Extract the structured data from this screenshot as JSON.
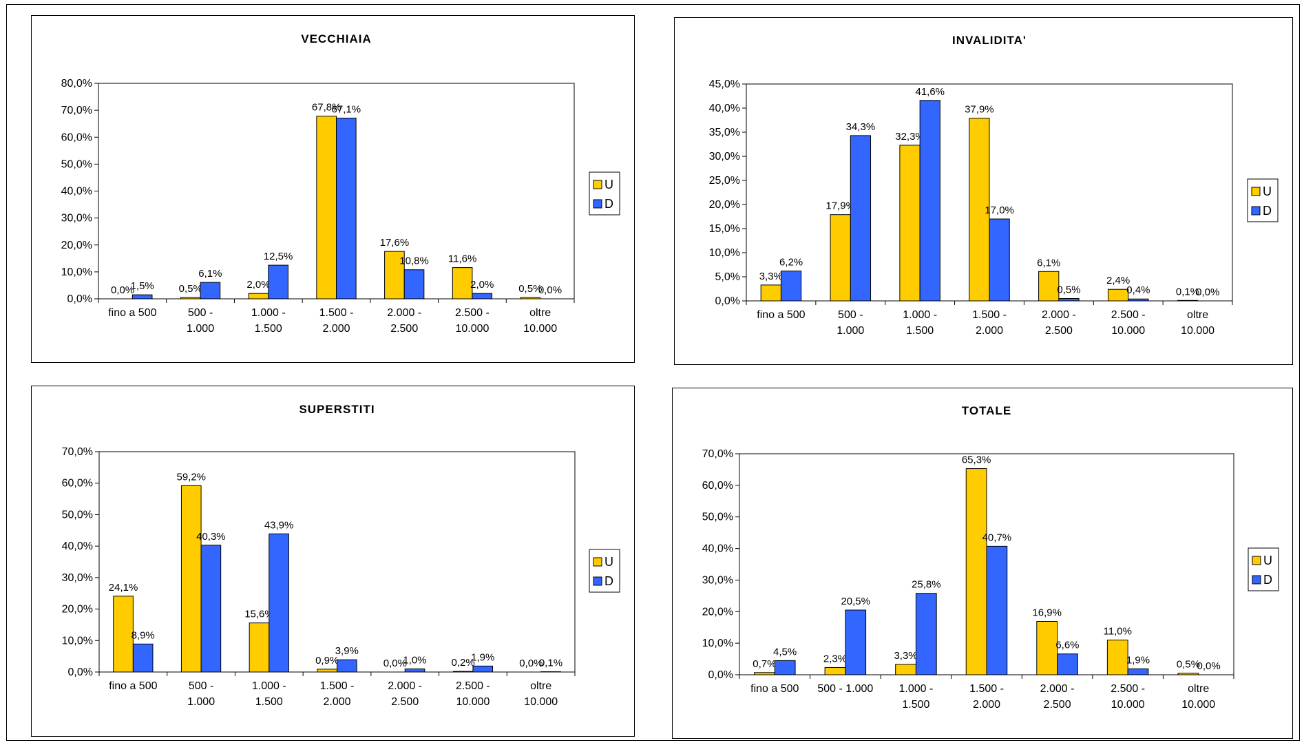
{
  "colors": {
    "U": "#ffcc00",
    "D": "#3366ff"
  },
  "chart_data": [
    {
      "type": "bar",
      "title": "VECCHIAIA",
      "categories": [
        [
          "fino a 500"
        ],
        [
          "500 -",
          "1.000"
        ],
        [
          "1.000 -",
          "1.500"
        ],
        [
          "1.500 -",
          "2.000"
        ],
        [
          "2.000 -",
          "2.500"
        ],
        [
          "2.500 -",
          "10.000"
        ],
        [
          "oltre",
          "10.000"
        ]
      ],
      "series": [
        {
          "name": "U",
          "values": [
            0.0,
            0.5,
            2.0,
            67.8,
            17.6,
            11.6,
            0.5
          ],
          "labels": [
            "0,0%",
            "0,5%",
            "2,0%",
            "67,8%",
            "17,6%",
            "11,6%",
            "0,5%"
          ]
        },
        {
          "name": "D",
          "values": [
            1.5,
            6.1,
            12.5,
            67.1,
            10.8,
            2.0,
            0.0
          ],
          "labels": [
            "1,5%",
            "6,1%",
            "12,5%",
            "67,1%",
            "10,8%",
            "2,0%",
            "0,0%"
          ]
        }
      ],
      "ylim": [
        0,
        80
      ],
      "yticks": [
        "0,0%",
        "10,0%",
        "20,0%",
        "30,0%",
        "40,0%",
        "50,0%",
        "60,0%",
        "70,0%",
        "80,0%"
      ],
      "legend": "right",
      "grid": false
    },
    {
      "type": "bar",
      "title": "INVALIDITA'",
      "categories": [
        [
          "fino a 500"
        ],
        [
          "500 -",
          "1.000"
        ],
        [
          "1.000 -",
          "1.500"
        ],
        [
          "1.500 -",
          "2.000"
        ],
        [
          "2.000 -",
          "2.500"
        ],
        [
          "2.500 -",
          "10.000"
        ],
        [
          "oltre",
          "10.000"
        ]
      ],
      "series": [
        {
          "name": "U",
          "values": [
            3.3,
            17.9,
            32.3,
            37.9,
            6.1,
            2.4,
            0.1
          ],
          "labels": [
            "3,3%",
            "17,9%",
            "32,3%",
            "37,9%",
            "6,1%",
            "2,4%",
            "0,1%"
          ]
        },
        {
          "name": "D",
          "values": [
            6.2,
            34.3,
            41.6,
            17.0,
            0.5,
            0.4,
            0.0
          ],
          "labels": [
            "6,2%",
            "34,3%",
            "41,6%",
            "17,0%",
            "0,5%",
            "0,4%",
            "0,0%"
          ]
        }
      ],
      "ylim": [
        0,
        45
      ],
      "yticks": [
        "0,0%",
        "5,0%",
        "10,0%",
        "15,0%",
        "20,0%",
        "25,0%",
        "30,0%",
        "35,0%",
        "40,0%",
        "45,0%"
      ],
      "legend": "right",
      "grid": false
    },
    {
      "type": "bar",
      "title": "SUPERSTITI",
      "categories": [
        [
          "fino a 500"
        ],
        [
          "500 -",
          "1.000"
        ],
        [
          "1.000 -",
          "1.500"
        ],
        [
          "1.500 -",
          "2.000"
        ],
        [
          "2.000 -",
          "2.500"
        ],
        [
          "2.500 -",
          "10.000"
        ],
        [
          "oltre",
          "10.000"
        ]
      ],
      "series": [
        {
          "name": "U",
          "values": [
            24.1,
            59.2,
            15.6,
            0.9,
            0.0,
            0.2,
            0.0
          ],
          "labels": [
            "24,1%",
            "59,2%",
            "15,6%",
            "0,9%",
            "0,0%",
            "0,2%",
            "0,0%"
          ]
        },
        {
          "name": "D",
          "values": [
            8.9,
            40.3,
            43.9,
            3.9,
            1.0,
            1.9,
            0.1
          ],
          "labels": [
            "8,9%",
            "40,3%",
            "43,9%",
            "3,9%",
            "1,0%",
            "1,9%",
            "0,1%"
          ]
        }
      ],
      "ylim": [
        0,
        70
      ],
      "yticks": [
        "0,0%",
        "10,0%",
        "20,0%",
        "30,0%",
        "40,0%",
        "50,0%",
        "60,0%",
        "70,0%"
      ],
      "legend": "right",
      "grid": false
    },
    {
      "type": "bar",
      "title": "TOTALE",
      "categories": [
        [
          "fino a 500"
        ],
        [
          "500 - 1.000"
        ],
        [
          "1.000 -",
          "1.500"
        ],
        [
          "1.500 -",
          "2.000"
        ],
        [
          "2.000 -",
          "2.500"
        ],
        [
          "2.500 -",
          "10.000"
        ],
        [
          "oltre",
          "10.000"
        ]
      ],
      "series": [
        {
          "name": "U",
          "values": [
            0.7,
            2.3,
            3.3,
            65.3,
            16.9,
            11.0,
            0.5
          ],
          "labels": [
            "0,7%",
            "2,3%",
            "3,3%",
            "65,3%",
            "16,9%",
            "11,0%",
            "0,5%"
          ]
        },
        {
          "name": "D",
          "values": [
            4.5,
            20.5,
            25.8,
            40.7,
            6.6,
            1.9,
            0.0
          ],
          "labels": [
            "4,5%",
            "20,5%",
            "25,8%",
            "40,7%",
            "6,6%",
            "1,9%",
            "0,0%"
          ]
        }
      ],
      "ylim": [
        0,
        70
      ],
      "yticks": [
        "0,0%",
        "10,0%",
        "20,0%",
        "30,0%",
        "40,0%",
        "50,0%",
        "60,0%",
        "70,0%"
      ],
      "legend": "right",
      "grid": false
    }
  ]
}
